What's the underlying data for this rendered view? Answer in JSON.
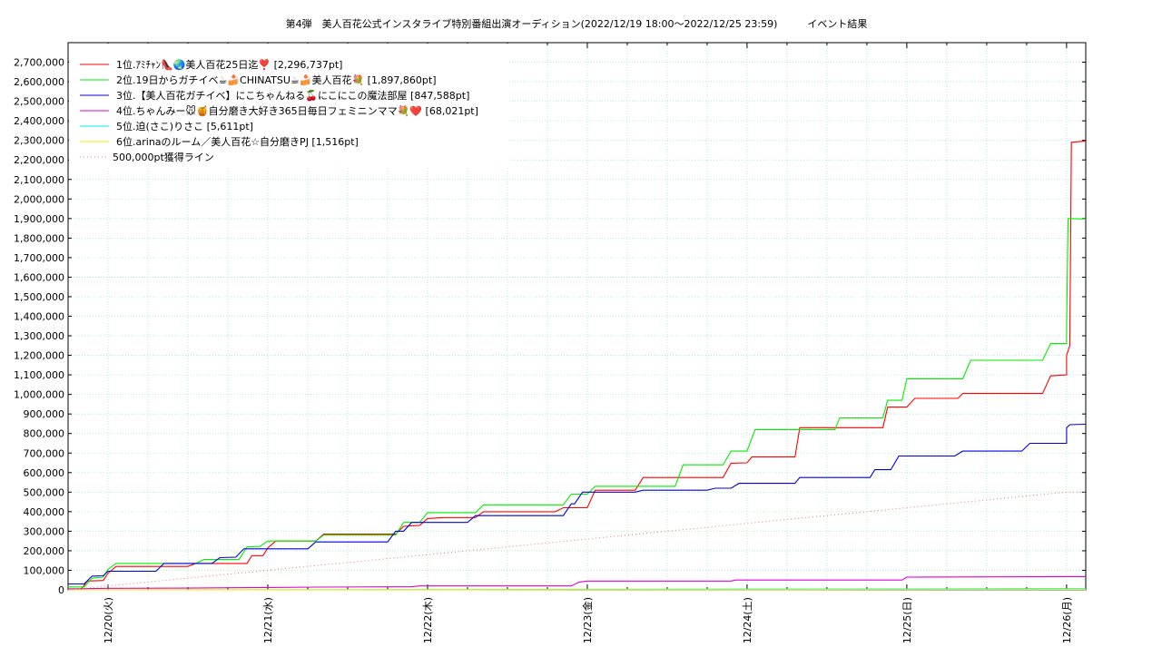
{
  "chart_data": {
    "type": "line",
    "title": "第4弾　美人百花公式インスタライブ特別番組出演オーディション(2022/12/19 18:00〜2022/12/25 23:59)　　　イベント結果",
    "xlabel": "",
    "ylabel": "",
    "ylim": [
      0,
      2800000
    ],
    "x_ticks": [
      "12/20(火)",
      "12/21(水)",
      "12/22(木)",
      "12/23(金)",
      "12/24(土)",
      "12/25(日)",
      "12/26(月)"
    ],
    "y_ticks": [
      "0",
      "100,000",
      "200,000",
      "300,000",
      "400,000",
      "500,000",
      "600,000",
      "700,000",
      "800,000",
      "900,000",
      "1,000,000",
      "1,100,000",
      "1,200,000",
      "1,300,000",
      "1,400,000",
      "1,500,000",
      "1,600,000",
      "1,700,000",
      "1,800,000",
      "1,900,000",
      "2,000,000",
      "2,100,000",
      "2,200,000",
      "2,300,000",
      "2,400,000",
      "2,500,000",
      "2,600,000",
      "2,700,000"
    ],
    "y_tick_values": [
      0,
      100000,
      200000,
      300000,
      400000,
      500000,
      600000,
      700000,
      800000,
      900000,
      1000000,
      1100000,
      1200000,
      1300000,
      1400000,
      1500000,
      1600000,
      1700000,
      1800000,
      1900000,
      2000000,
      2100000,
      2200000,
      2300000,
      2400000,
      2500000,
      2600000,
      2700000
    ],
    "x_tick_values": [
      1.0,
      2.0,
      3.0,
      4.0,
      5.0,
      6.0,
      7.0
    ],
    "xlim": [
      0.75,
      7.12
    ],
    "grid": true,
    "legend_position": "top-left",
    "x_unit": "days; 1.0 = 12/20(火) 00:00",
    "series": [
      {
        "name": "1位.ｱﾐﾁｬﾝ👠🌏美人百花25日迄❣️ [2,296,737pt]",
        "color": "#ff0000",
        "style": "solid",
        "points": [
          [
            0.75,
            0
          ],
          [
            0.83,
            0
          ],
          [
            0.87,
            45000
          ],
          [
            0.97,
            48000
          ],
          [
            1.0,
            85000
          ],
          [
            1.05,
            120000
          ],
          [
            1.5,
            120000
          ],
          [
            1.55,
            135000
          ],
          [
            1.87,
            135000
          ],
          [
            1.9,
            175000
          ],
          [
            1.97,
            175000
          ],
          [
            2.0,
            215000
          ],
          [
            2.05,
            250000
          ],
          [
            2.3,
            250000
          ],
          [
            2.35,
            285000
          ],
          [
            2.8,
            285000
          ],
          [
            2.85,
            325000
          ],
          [
            2.95,
            330000
          ],
          [
            3.0,
            365000
          ],
          [
            3.1,
            370000
          ],
          [
            3.3,
            370000
          ],
          [
            3.35,
            400000
          ],
          [
            3.8,
            400000
          ],
          [
            3.85,
            420000
          ],
          [
            4.0,
            420000
          ],
          [
            4.05,
            510000
          ],
          [
            4.3,
            510000
          ],
          [
            4.35,
            575000
          ],
          [
            4.85,
            575000
          ],
          [
            4.9,
            648000
          ],
          [
            5.0,
            650000
          ],
          [
            5.03,
            680000
          ],
          [
            5.3,
            680000
          ],
          [
            5.33,
            830000
          ],
          [
            5.85,
            830000
          ],
          [
            5.88,
            935000
          ],
          [
            6.0,
            935000
          ],
          [
            6.05,
            980000
          ],
          [
            6.32,
            980000
          ],
          [
            6.35,
            1005000
          ],
          [
            6.85,
            1005000
          ],
          [
            6.9,
            1095000
          ],
          [
            7.0,
            1100000
          ],
          [
            7.0,
            1200000
          ],
          [
            7.02,
            1250000
          ],
          [
            7.03,
            2290000
          ],
          [
            7.12,
            2296737
          ]
        ]
      },
      {
        "name": "2位.19日からガチイベ☕🍰CHINATSU☕🍰美人百花💐 [1,897,860pt]",
        "color": "#00ee00",
        "style": "solid",
        "points": [
          [
            0.75,
            15000
          ],
          [
            0.85,
            15000
          ],
          [
            0.9,
            60000
          ],
          [
            0.97,
            65000
          ],
          [
            1.0,
            105000
          ],
          [
            1.05,
            135000
          ],
          [
            1.55,
            135000
          ],
          [
            1.6,
            155000
          ],
          [
            1.82,
            155000
          ],
          [
            1.87,
            220000
          ],
          [
            1.95,
            222000
          ],
          [
            2.0,
            250000
          ],
          [
            2.3,
            250000
          ],
          [
            2.35,
            280000
          ],
          [
            2.8,
            280000
          ],
          [
            2.85,
            345000
          ],
          [
            2.95,
            345000
          ],
          [
            3.0,
            395000
          ],
          [
            3.3,
            395000
          ],
          [
            3.35,
            435000
          ],
          [
            3.85,
            435000
          ],
          [
            3.9,
            490000
          ],
          [
            4.0,
            490000
          ],
          [
            4.05,
            530000
          ],
          [
            4.55,
            530000
          ],
          [
            4.6,
            640000
          ],
          [
            4.85,
            640000
          ],
          [
            4.9,
            710000
          ],
          [
            5.0,
            710000
          ],
          [
            5.05,
            820000
          ],
          [
            5.55,
            820000
          ],
          [
            5.58,
            880000
          ],
          [
            5.85,
            880000
          ],
          [
            5.88,
            970000
          ],
          [
            5.97,
            970000
          ],
          [
            6.0,
            1080000
          ],
          [
            6.35,
            1080000
          ],
          [
            6.4,
            1175000
          ],
          [
            6.85,
            1175000
          ],
          [
            6.9,
            1260000
          ],
          [
            7.0,
            1260000
          ],
          [
            7.0,
            1350000
          ],
          [
            7.01,
            1900000
          ],
          [
            7.12,
            1897860
          ]
        ]
      },
      {
        "name": "3位.【美人百花ガチイベ】にこちゃんねる🍒にこにこの魔法部屋 [847,588pt]",
        "color": "#0000dd",
        "style": "solid",
        "points": [
          [
            0.75,
            30000
          ],
          [
            0.85,
            30000
          ],
          [
            0.9,
            70000
          ],
          [
            0.97,
            72000
          ],
          [
            1.0,
            95000
          ],
          [
            1.3,
            95000
          ],
          [
            1.35,
            135000
          ],
          [
            1.65,
            135000
          ],
          [
            1.7,
            165000
          ],
          [
            1.8,
            167000
          ],
          [
            1.85,
            210000
          ],
          [
            2.25,
            210000
          ],
          [
            2.3,
            245000
          ],
          [
            2.75,
            245000
          ],
          [
            2.8,
            300000
          ],
          [
            2.85,
            300000
          ],
          [
            2.9,
            345000
          ],
          [
            3.25,
            345000
          ],
          [
            3.3,
            380000
          ],
          [
            3.85,
            380000
          ],
          [
            3.9,
            440000
          ],
          [
            3.92,
            440000
          ],
          [
            3.97,
            500000
          ],
          [
            4.3,
            500000
          ],
          [
            4.35,
            510000
          ],
          [
            4.75,
            510000
          ],
          [
            4.8,
            520000
          ],
          [
            4.9,
            520000
          ],
          [
            4.95,
            545000
          ],
          [
            5.3,
            545000
          ],
          [
            5.33,
            575000
          ],
          [
            5.77,
            575000
          ],
          [
            5.8,
            615000
          ],
          [
            5.9,
            615000
          ],
          [
            5.95,
            685000
          ],
          [
            6.3,
            685000
          ],
          [
            6.35,
            710000
          ],
          [
            6.72,
            710000
          ],
          [
            6.77,
            750000
          ],
          [
            7.0,
            750000
          ],
          [
            7.0,
            830000
          ],
          [
            7.02,
            845000
          ],
          [
            7.12,
            847588
          ]
        ]
      },
      {
        "name": "4位.ちゃんみー🐭🍯自分磨き大好き365日毎日フェミニンママ💐❤️ [68,021pt]",
        "color": "#dd00dd",
        "style": "solid",
        "points": [
          [
            0.75,
            5000
          ],
          [
            1.0,
            8000
          ],
          [
            1.5,
            9000
          ],
          [
            2.0,
            12000
          ],
          [
            2.3,
            14000
          ],
          [
            2.9,
            16000
          ],
          [
            2.95,
            20000
          ],
          [
            3.9,
            20000
          ],
          [
            3.95,
            40000
          ],
          [
            4.0,
            45000
          ],
          [
            4.9,
            45000
          ],
          [
            4.93,
            50000
          ],
          [
            5.97,
            50000
          ],
          [
            6.0,
            65000
          ],
          [
            7.12,
            68021
          ]
        ]
      },
      {
        "name": "5位.迫(さこ)りさこ [5,611pt]",
        "color": "#00eeee",
        "style": "solid",
        "points": [
          [
            0.75,
            0
          ],
          [
            3.0,
            1500
          ],
          [
            5.0,
            3500
          ],
          [
            7.12,
            5611
          ]
        ]
      },
      {
        "name": "6位.arinaのルーム／美人百花☆自分磨きPJ [1,516pt]",
        "color": "#eeee00",
        "style": "solid",
        "points": [
          [
            0.75,
            0
          ],
          [
            3.0,
            500
          ],
          [
            5.0,
            1000
          ],
          [
            7.12,
            1516
          ]
        ]
      },
      {
        "name": "500,000pt獲得ライン",
        "color": "#dd8888",
        "style": "dotted",
        "points": [
          [
            0.75,
            0
          ],
          [
            7.0,
            500000
          ],
          [
            7.12,
            500000
          ]
        ]
      }
    ]
  }
}
